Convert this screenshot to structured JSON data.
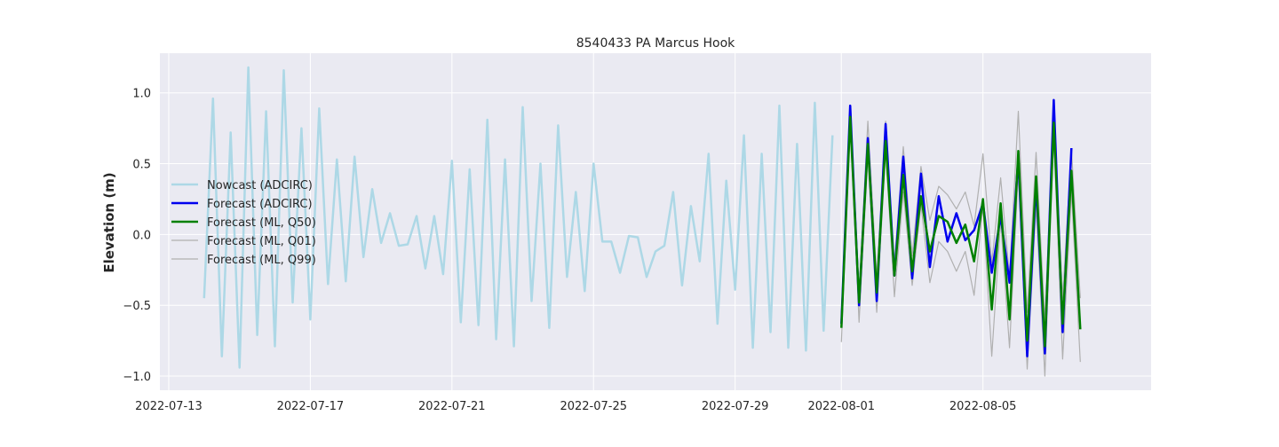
{
  "chart_data": {
    "type": "line",
    "title": "8540433 PA Marcus Hook",
    "xlabel": "",
    "ylabel": "Elevation (m)",
    "x_axis": {
      "type": "date",
      "range": [
        "2022-07-12T18:00",
        "2022-08-09T18:00"
      ],
      "ticks": [
        "2022-07-13",
        "2022-07-17",
        "2022-07-21",
        "2022-07-25",
        "2022-07-29",
        "2022-08-01",
        "2022-08-05"
      ]
    },
    "y_axis": {
      "range": [
        -1.1,
        1.28
      ],
      "ticks": [
        1.0,
        0.5,
        0.0,
        -0.5,
        -1.0
      ],
      "tick_labels": [
        "1.0",
        "0.5",
        "0.0",
        "−0.5",
        "−1.0"
      ]
    },
    "grid": true,
    "legend_placement": "center-left",
    "series": [
      {
        "name": "Nowcast (ADCIRC)",
        "color": "#add8e6",
        "width": 2.5,
        "x": [
          "2022-07-14T00:00",
          "2022-07-14T06:00",
          "2022-07-14T12:00",
          "2022-07-14T18:00",
          "2022-07-15T00:00",
          "2022-07-15T06:00",
          "2022-07-15T12:00",
          "2022-07-15T18:00",
          "2022-07-16T00:00",
          "2022-07-16T06:00",
          "2022-07-16T12:00",
          "2022-07-16T18:00",
          "2022-07-17T00:00",
          "2022-07-17T06:00",
          "2022-07-17T12:00",
          "2022-07-17T18:00",
          "2022-07-18T00:00",
          "2022-07-18T06:00",
          "2022-07-18T12:00",
          "2022-07-18T18:00",
          "2022-07-19T00:00",
          "2022-07-19T06:00",
          "2022-07-19T12:00",
          "2022-07-19T18:00",
          "2022-07-20T00:00",
          "2022-07-20T06:00",
          "2022-07-20T12:00",
          "2022-07-20T18:00",
          "2022-07-21T00:00",
          "2022-07-21T06:00",
          "2022-07-21T12:00",
          "2022-07-21T18:00",
          "2022-07-22T00:00",
          "2022-07-22T06:00",
          "2022-07-22T12:00",
          "2022-07-22T18:00",
          "2022-07-23T00:00",
          "2022-07-23T06:00",
          "2022-07-23T12:00",
          "2022-07-23T18:00",
          "2022-07-24T00:00",
          "2022-07-24T06:00",
          "2022-07-24T12:00",
          "2022-07-24T18:00",
          "2022-07-25T00:00",
          "2022-07-25T06:00",
          "2022-07-25T12:00",
          "2022-07-25T18:00",
          "2022-07-26T00:00",
          "2022-07-26T06:00",
          "2022-07-26T12:00",
          "2022-07-26T18:00",
          "2022-07-27T00:00",
          "2022-07-27T06:00",
          "2022-07-27T12:00",
          "2022-07-27T18:00",
          "2022-07-28T00:00",
          "2022-07-28T06:00",
          "2022-07-28T12:00",
          "2022-07-28T18:00",
          "2022-07-29T00:00",
          "2022-07-29T06:00",
          "2022-07-29T12:00",
          "2022-07-29T18:00",
          "2022-07-30T00:00",
          "2022-07-30T06:00",
          "2022-07-30T12:00",
          "2022-07-30T18:00",
          "2022-07-31T00:00",
          "2022-07-31T06:00",
          "2022-07-31T12:00",
          "2022-07-31T18:00"
        ],
        "y": [
          -0.45,
          0.96,
          -0.86,
          0.72,
          -0.94,
          1.18,
          -0.71,
          0.87,
          -0.79,
          1.16,
          -0.48,
          0.75,
          -0.6,
          0.89,
          -0.35,
          0.53,
          -0.33,
          0.55,
          -0.16,
          0.32,
          -0.06,
          0.15,
          -0.08,
          -0.07,
          0.13,
          -0.24,
          0.13,
          -0.28,
          0.52,
          -0.62,
          0.46,
          -0.64,
          0.81,
          -0.74,
          0.53,
          -0.79,
          0.9,
          -0.47,
          0.5,
          -0.66,
          0.77,
          -0.3,
          0.3,
          -0.4,
          0.5,
          -0.05,
          -0.05,
          -0.27,
          -0.01,
          -0.02,
          -0.3,
          -0.12,
          -0.08,
          0.3,
          -0.36,
          0.2,
          -0.19,
          0.57,
          -0.63,
          0.38,
          -0.39,
          0.7,
          -0.8,
          0.57,
          -0.69,
          0.91,
          -0.8,
          0.64,
          -0.82,
          0.93,
          -0.68,
          0.7
        ]
      },
      {
        "name": "Forecast (ADCIRC)",
        "color": "#0000ee",
        "width": 2.5,
        "x": [
          "2022-08-01T00:00",
          "2022-08-01T06:00",
          "2022-08-01T12:00",
          "2022-08-01T18:00",
          "2022-08-02T00:00",
          "2022-08-02T06:00",
          "2022-08-02T12:00",
          "2022-08-02T18:00",
          "2022-08-03T00:00",
          "2022-08-03T06:00",
          "2022-08-03T12:00",
          "2022-08-03T18:00",
          "2022-08-04T00:00",
          "2022-08-04T06:00",
          "2022-08-04T12:00",
          "2022-08-04T18:00",
          "2022-08-05T00:00",
          "2022-08-05T06:00",
          "2022-08-05T12:00",
          "2022-08-05T18:00",
          "2022-08-06T00:00",
          "2022-08-06T06:00",
          "2022-08-06T12:00",
          "2022-08-06T18:00",
          "2022-08-07T00:00",
          "2022-08-07T06:00",
          "2022-08-07T12:00",
          "2022-08-07T18:00"
        ],
        "y": [
          -0.63,
          0.91,
          -0.5,
          0.68,
          -0.47,
          0.78,
          -0.29,
          0.55,
          -0.31,
          0.43,
          -0.23,
          0.27,
          -0.05,
          0.15,
          -0.04,
          0.03,
          0.22,
          -0.27,
          0.13,
          -0.34,
          0.54,
          -0.86,
          0.36,
          -0.84,
          0.95,
          -0.69,
          0.61,
          null
        ]
      },
      {
        "name": "Forecast (ML, Q50)",
        "color": "#008000",
        "width": 2.5,
        "x": [
          "2022-08-01T00:00",
          "2022-08-01T06:00",
          "2022-08-01T12:00",
          "2022-08-01T18:00",
          "2022-08-02T00:00",
          "2022-08-02T06:00",
          "2022-08-02T12:00",
          "2022-08-02T18:00",
          "2022-08-03T00:00",
          "2022-08-03T06:00",
          "2022-08-03T12:00",
          "2022-08-03T18:00",
          "2022-08-04T00:00",
          "2022-08-04T06:00",
          "2022-08-04T12:00",
          "2022-08-04T18:00",
          "2022-08-05T00:00",
          "2022-08-05T06:00",
          "2022-08-05T12:00",
          "2022-08-05T18:00",
          "2022-08-06T00:00",
          "2022-08-06T06:00",
          "2022-08-06T12:00",
          "2022-08-06T18:00",
          "2022-08-07T00:00",
          "2022-08-07T06:00",
          "2022-08-07T12:00",
          "2022-08-07T18:00"
        ],
        "y": [
          -0.66,
          0.83,
          -0.48,
          0.64,
          -0.41,
          0.66,
          -0.29,
          0.42,
          -0.26,
          0.27,
          -0.12,
          0.13,
          0.09,
          -0.06,
          0.07,
          -0.19,
          0.25,
          -0.53,
          0.22,
          -0.6,
          0.59,
          -0.75,
          0.41,
          -0.79,
          0.79,
          -0.63,
          0.45,
          -0.67
        ]
      },
      {
        "name": "Forecast (ML, Q01)",
        "color": "#b0b0b0",
        "width": 1.2,
        "x": [
          "2022-08-01T00:00",
          "2022-08-01T06:00",
          "2022-08-01T12:00",
          "2022-08-01T18:00",
          "2022-08-02T00:00",
          "2022-08-02T06:00",
          "2022-08-02T12:00",
          "2022-08-02T18:00",
          "2022-08-03T00:00",
          "2022-08-03T06:00",
          "2022-08-03T12:00",
          "2022-08-03T18:00",
          "2022-08-04T00:00",
          "2022-08-04T06:00",
          "2022-08-04T12:00",
          "2022-08-04T18:00",
          "2022-08-05T00:00",
          "2022-08-05T06:00",
          "2022-08-05T12:00",
          "2022-08-05T18:00",
          "2022-08-06T00:00",
          "2022-08-06T06:00",
          "2022-08-06T12:00",
          "2022-08-06T18:00",
          "2022-08-07T00:00",
          "2022-08-07T06:00",
          "2022-08-07T12:00",
          "2022-08-07T18:00"
        ],
        "y": [
          -0.76,
          0.78,
          -0.62,
          0.55,
          -0.55,
          0.6,
          -0.44,
          0.3,
          -0.36,
          0.21,
          -0.34,
          -0.05,
          -0.12,
          -0.26,
          -0.12,
          -0.43,
          0.2,
          -0.86,
          0.1,
          -0.8,
          0.45,
          -0.95,
          0.2,
          -1.0,
          0.7,
          -0.88,
          0.3,
          -0.9
        ]
      },
      {
        "name": "Forecast (ML, Q99)",
        "color": "#b0b0b0",
        "width": 1.2,
        "x": [
          "2022-08-01T00:00",
          "2022-08-01T06:00",
          "2022-08-01T12:00",
          "2022-08-01T18:00",
          "2022-08-02T00:00",
          "2022-08-02T06:00",
          "2022-08-02T12:00",
          "2022-08-02T18:00",
          "2022-08-03T00:00",
          "2022-08-03T06:00",
          "2022-08-03T12:00",
          "2022-08-03T18:00",
          "2022-08-04T00:00",
          "2022-08-04T06:00",
          "2022-08-04T12:00",
          "2022-08-04T18:00",
          "2022-08-05T00:00",
          "2022-08-05T06:00",
          "2022-08-05T12:00",
          "2022-08-05T18:00",
          "2022-08-06T00:00",
          "2022-08-06T06:00",
          "2022-08-06T12:00",
          "2022-08-06T18:00",
          "2022-08-07T00:00",
          "2022-08-07T06:00",
          "2022-08-07T12:00",
          "2022-08-07T18:00"
        ],
        "y": [
          -0.6,
          0.88,
          -0.4,
          0.8,
          -0.3,
          0.8,
          -0.2,
          0.62,
          -0.15,
          0.48,
          0.1,
          0.34,
          0.28,
          0.18,
          0.3,
          0.06,
          0.57,
          -0.2,
          0.4,
          -0.3,
          0.87,
          -0.55,
          0.58,
          -0.6,
          0.87,
          -0.45,
          0.6,
          -0.45
        ]
      }
    ]
  }
}
